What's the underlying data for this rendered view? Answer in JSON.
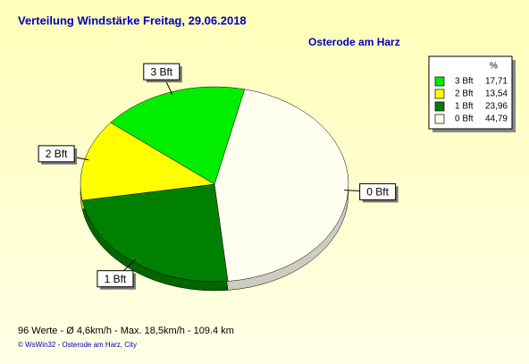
{
  "chart_data": {
    "type": "pie",
    "title": "Verteilung Windstärke  Freitag, 29.06.2018",
    "subtitle": "Osterode am Harz",
    "legend_title": "%",
    "categories": [
      "3 Bft",
      "2 Bft",
      "1 Bft",
      "0 Bft"
    ],
    "values": [
      17.71,
      13.54,
      23.96,
      44.79
    ],
    "value_labels": [
      "17,71",
      "13,54",
      "23,96",
      "44,79"
    ],
    "colors": [
      "#00ee00",
      "#ffff00",
      "#008000",
      "#fffff0"
    ],
    "footer": "96 Werte   -   Ø 4,6km/h  -  Max. 18,5km/h   -   109.4 km",
    "credit": "© WsWin32  -  Osterode am Harz, City"
  }
}
